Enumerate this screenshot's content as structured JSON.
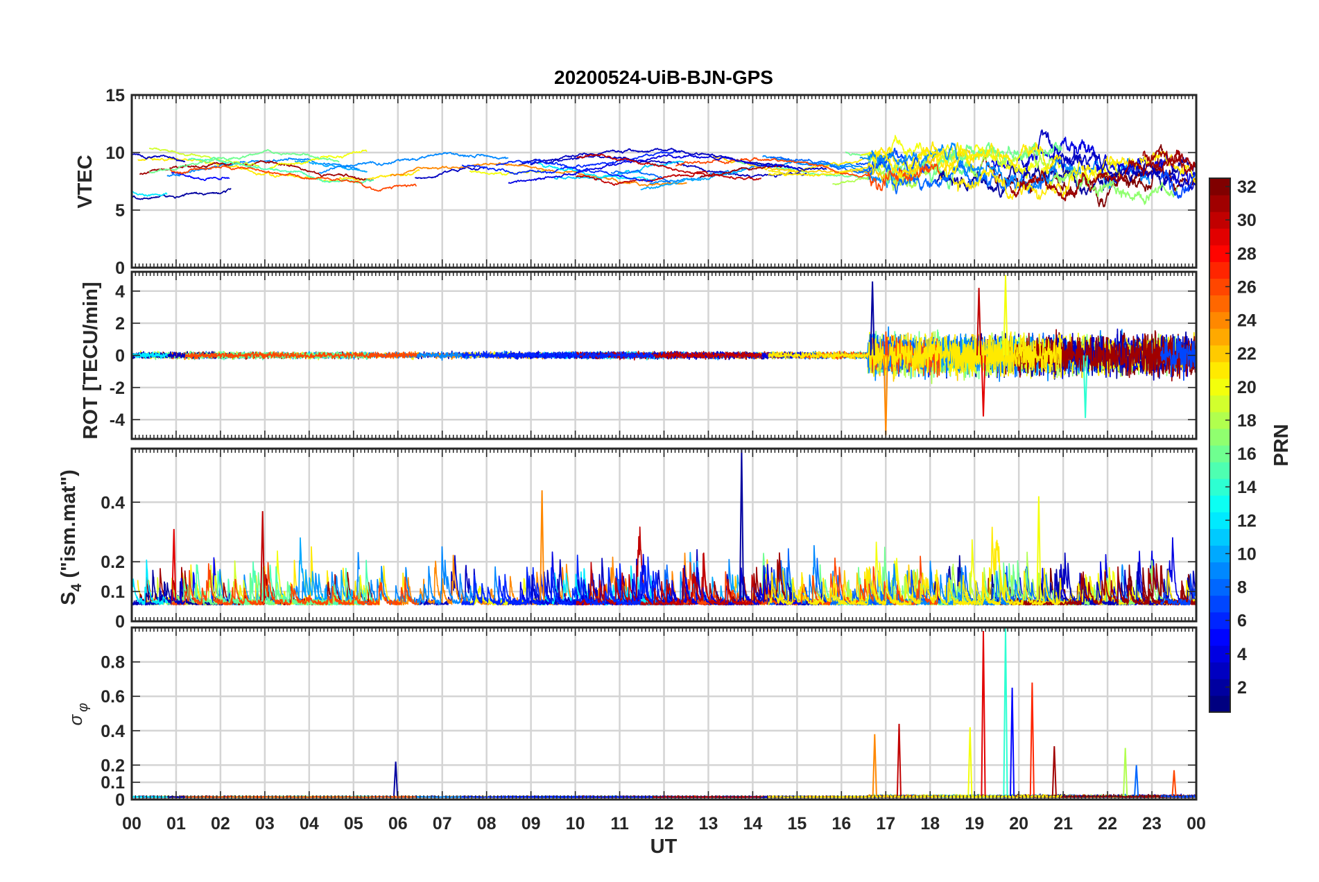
{
  "chart_data": {
    "type": "line",
    "title": "20200524-UiB-BJN-GPS",
    "xlabel": "UT",
    "x_tick_labels": [
      "00",
      "01",
      "02",
      "03",
      "04",
      "05",
      "06",
      "07",
      "08",
      "09",
      "10",
      "11",
      "12",
      "13",
      "14",
      "15",
      "16",
      "17",
      "18",
      "19",
      "20",
      "21",
      "22",
      "23",
      "00"
    ],
    "x_range_hours": [
      0,
      24
    ],
    "grid": true,
    "colorbar": {
      "label": "PRN",
      "range": [
        1,
        32
      ],
      "tick_values": [
        2,
        4,
        6,
        8,
        10,
        12,
        14,
        16,
        18,
        20,
        22,
        24,
        26,
        28,
        30,
        32
      ],
      "tick_labels": [
        "2",
        "4",
        "6",
        "8",
        "10",
        "12",
        "14",
        "16",
        "18",
        "20",
        "22",
        "24",
        "26",
        "28",
        "30",
        "32"
      ],
      "colormap": "jet",
      "placement": "right"
    },
    "panels": [
      {
        "id": "vtec",
        "ylabel": "VTEC",
        "ylim": [
          0,
          15
        ],
        "y_ticks": [
          0,
          5,
          10,
          15
        ],
        "y_tick_labels": [
          "0",
          "5",
          "10",
          "15"
        ],
        "typical_value": 8.5,
        "disturbed_interval_hours": [
          16.6,
          24
        ],
        "note_series": "one line per satellite PRN, colored by PRN"
      },
      {
        "id": "rot",
        "ylabel": "ROT [TECU/min]",
        "ylim": [
          -5.2,
          5.2
        ],
        "y_ticks": [
          -4,
          -2,
          0,
          2,
          4
        ],
        "y_tick_labels": [
          "-4",
          "-2",
          "0",
          "2",
          "4"
        ],
        "typical_value": 0,
        "disturbed_interval_hours": [
          16.6,
          24
        ],
        "peaks": [
          [
            16.7,
            4.6
          ],
          [
            17.0,
            -5.0
          ],
          [
            19.1,
            4.2
          ],
          [
            19.7,
            5.0
          ],
          [
            19.2,
            -3.8
          ],
          [
            21.5,
            -3.9
          ]
        ]
      },
      {
        "id": "s4",
        "ylabel_main": "S",
        "ylabel_sub": "4",
        "ylabel_suffix": " (\"ism.mat\")",
        "ylim": [
          0,
          0.58
        ],
        "y_ticks": [
          0,
          0.1,
          0.2,
          0.4
        ],
        "y_tick_labels": [
          "0",
          "0.1",
          "0.2",
          "0.4"
        ],
        "typical_value": 0.07,
        "peaks": [
          [
            13.75,
            0.58
          ],
          [
            9.25,
            0.44
          ],
          [
            2.95,
            0.37
          ],
          [
            20.45,
            0.42
          ],
          [
            0.95,
            0.31
          ]
        ]
      },
      {
        "id": "sigma_phi",
        "ylabel_main": "σ",
        "ylabel_sub": "φ",
        "ylim": [
          0,
          1.0
        ],
        "y_ticks": [
          0,
          0.1,
          0.2,
          0.4,
          0.6,
          0.8
        ],
        "y_tick_labels": [
          "0",
          "0.1",
          "0.2",
          "0.4",
          "0.6",
          "0.8"
        ],
        "typical_value": 0.02,
        "peaks": [
          [
            5.95,
            0.22
          ],
          [
            16.75,
            0.38
          ],
          [
            17.3,
            0.44
          ],
          [
            18.9,
            0.42
          ],
          [
            19.2,
            0.98
          ],
          [
            19.7,
            1.0
          ],
          [
            19.85,
            0.65
          ],
          [
            20.3,
            0.68
          ],
          [
            20.8,
            0.31
          ],
          [
            22.4,
            0.3
          ],
          [
            22.65,
            0.2
          ],
          [
            23.5,
            0.17
          ]
        ]
      }
    ]
  }
}
